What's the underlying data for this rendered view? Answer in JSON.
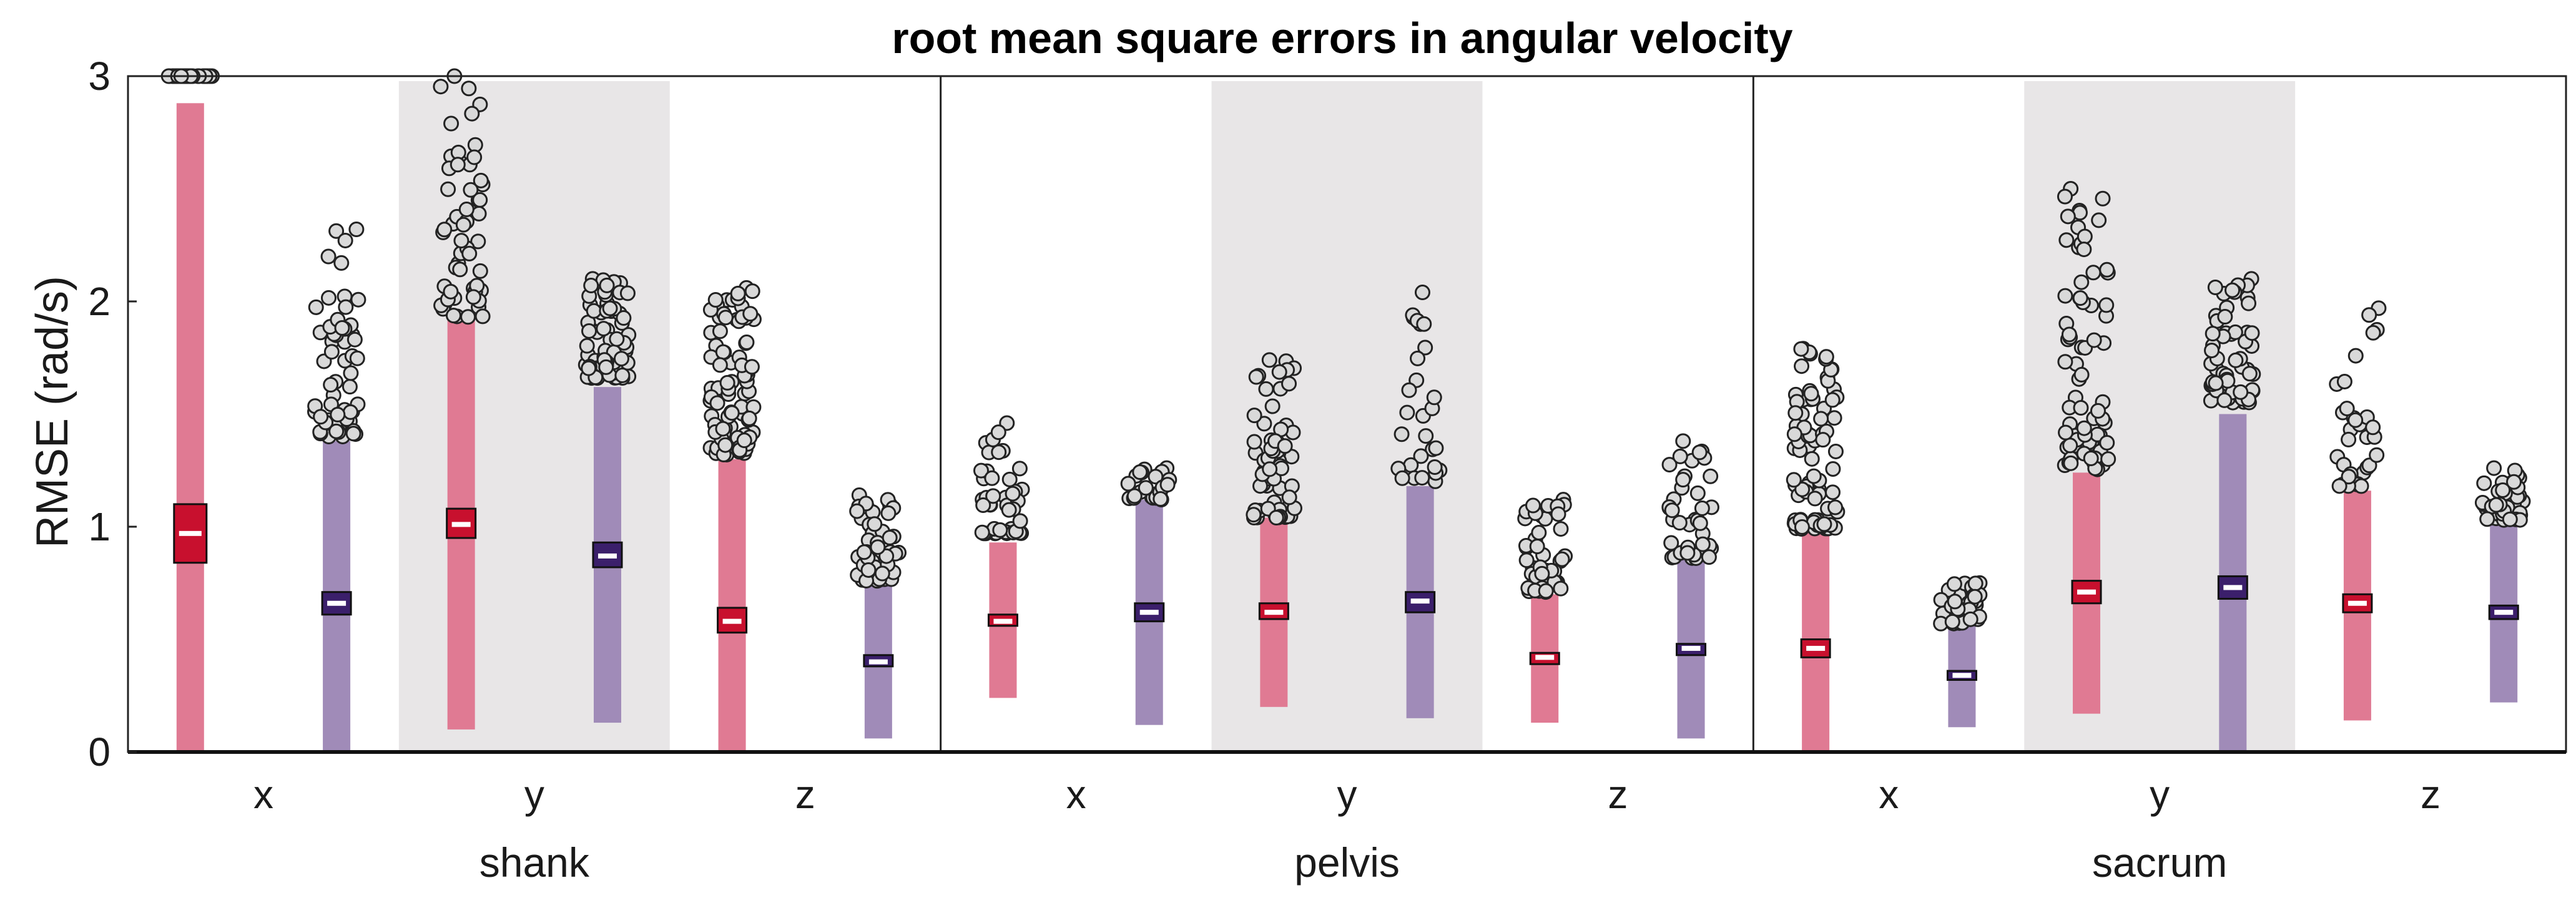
{
  "chart_data": {
    "type": "scatter",
    "title": "root mean square errors in angular velocity",
    "ylabel": "RMSE (rad/s)",
    "ylim": [
      0,
      3
    ],
    "yticks": [
      "0",
      "1",
      "2",
      "3"
    ],
    "grid": false,
    "groups": [
      {
        "name": "shank",
        "axes": [
          {
            "label": "x",
            "shaded": false,
            "a": {
              "median": 0.97,
              "q1": 0.84,
              "q3": 1.1,
              "lo": 0.0,
              "hi": 2.88,
              "outliers_min": 3.0,
              "outliers_max": 3.0,
              "n_outliers": 40
            },
            "b": {
              "median": 0.66,
              "q1": 0.61,
              "q3": 0.71,
              "lo": 0.0,
              "hi": 1.38,
              "outliers_min": 1.4,
              "outliers_max": 2.32,
              "n_outliers": 60
            }
          },
          {
            "label": "y",
            "shaded": true,
            "a": {
              "median": 1.01,
              "q1": 0.95,
              "q3": 1.08,
              "lo": 0.1,
              "hi": 1.92,
              "outliers_min": 1.93,
              "outliers_max": 3.0,
              "n_outliers": 55
            },
            "b": {
              "median": 0.87,
              "q1": 0.82,
              "q3": 0.93,
              "lo": 0.13,
              "hi": 1.62,
              "outliers_min": 1.66,
              "outliers_max": 2.1,
              "n_outliers": 70
            }
          },
          {
            "label": "z",
            "shaded": false,
            "a": {
              "median": 0.58,
              "q1": 0.53,
              "q3": 0.64,
              "lo": 0.0,
              "hi": 1.3,
              "outliers_min": 1.32,
              "outliers_max": 2.06,
              "n_outliers": 90
            },
            "b": {
              "median": 0.4,
              "q1": 0.38,
              "q3": 0.43,
              "lo": 0.06,
              "hi": 0.76,
              "outliers_min": 0.76,
              "outliers_max": 1.14,
              "n_outliers": 50
            }
          }
        ]
      },
      {
        "name": "pelvis",
        "axes": [
          {
            "label": "x",
            "shaded": false,
            "a": {
              "median": 0.58,
              "q1": 0.56,
              "q3": 0.61,
              "lo": 0.24,
              "hi": 0.93,
              "outliers_min": 0.97,
              "outliers_max": 1.46,
              "n_outliers": 45
            },
            "b": {
              "median": 0.62,
              "q1": 0.58,
              "q3": 0.66,
              "lo": 0.12,
              "hi": 1.12,
              "outliers_min": 1.12,
              "outliers_max": 1.26,
              "n_outliers": 25
            }
          },
          {
            "label": "y",
            "shaded": true,
            "a": {
              "median": 0.62,
              "q1": 0.59,
              "q3": 0.66,
              "lo": 0.2,
              "hi": 1.04,
              "outliers_min": 1.04,
              "outliers_max": 1.74,
              "n_outliers": 60
            },
            "b": {
              "median": 0.67,
              "q1": 0.62,
              "q3": 0.71,
              "lo": 0.15,
              "hi": 1.18,
              "outliers_min": 1.2,
              "outliers_max": 2.04,
              "n_outliers": 28
            }
          },
          {
            "label": "z",
            "shaded": false,
            "a": {
              "median": 0.42,
              "q1": 0.39,
              "q3": 0.44,
              "lo": 0.13,
              "hi": 0.7,
              "outliers_min": 0.71,
              "outliers_max": 1.12,
              "n_outliers": 45
            },
            "b": {
              "median": 0.46,
              "q1": 0.43,
              "q3": 0.48,
              "lo": 0.06,
              "hi": 0.86,
              "outliers_min": 0.86,
              "outliers_max": 1.38,
              "n_outliers": 40
            }
          }
        ]
      },
      {
        "name": "sacrum",
        "axes": [
          {
            "label": "x",
            "shaded": false,
            "a": {
              "median": 0.46,
              "q1": 0.42,
              "q3": 0.5,
              "lo": 0.0,
              "hi": 0.98,
              "outliers_min": 0.99,
              "outliers_max": 1.79,
              "n_outliers": 90
            },
            "b": {
              "median": 0.34,
              "q1": 0.32,
              "q3": 0.36,
              "lo": 0.11,
              "hi": 0.57,
              "outliers_min": 0.57,
              "outliers_max": 0.75,
              "n_outliers": 40
            }
          },
          {
            "label": "y",
            "shaded": true,
            "a": {
              "median": 0.71,
              "q1": 0.66,
              "q3": 0.76,
              "lo": 0.17,
              "hi": 1.24,
              "outliers_min": 1.25,
              "outliers_max": 2.5,
              "n_outliers": 75
            },
            "b": {
              "median": 0.73,
              "q1": 0.68,
              "q3": 0.78,
              "lo": 0.0,
              "hi": 1.5,
              "outliers_min": 1.55,
              "outliers_max": 2.1,
              "n_outliers": 60
            }
          },
          {
            "label": "z",
            "shaded": false,
            "a": {
              "median": 0.66,
              "q1": 0.62,
              "q3": 0.7,
              "lo": 0.14,
              "hi": 1.16,
              "outliers_min": 1.18,
              "outliers_max": 1.97,
              "n_outliers": 32
            },
            "b": {
              "median": 0.62,
              "q1": 0.59,
              "q3": 0.65,
              "lo": 0.22,
              "hi": 1.02,
              "outliers_min": 1.03,
              "outliers_max": 1.26,
              "n_outliers": 45
            }
          }
        ]
      }
    ]
  },
  "colors": {
    "a_whisker": "#e07a93",
    "a_box": "#c8102e",
    "b_whisker": "#a08bb8",
    "b_box": "#3b1f6b",
    "shade": "#e8e6e7",
    "outlier_fill": "#d9d9d9"
  }
}
